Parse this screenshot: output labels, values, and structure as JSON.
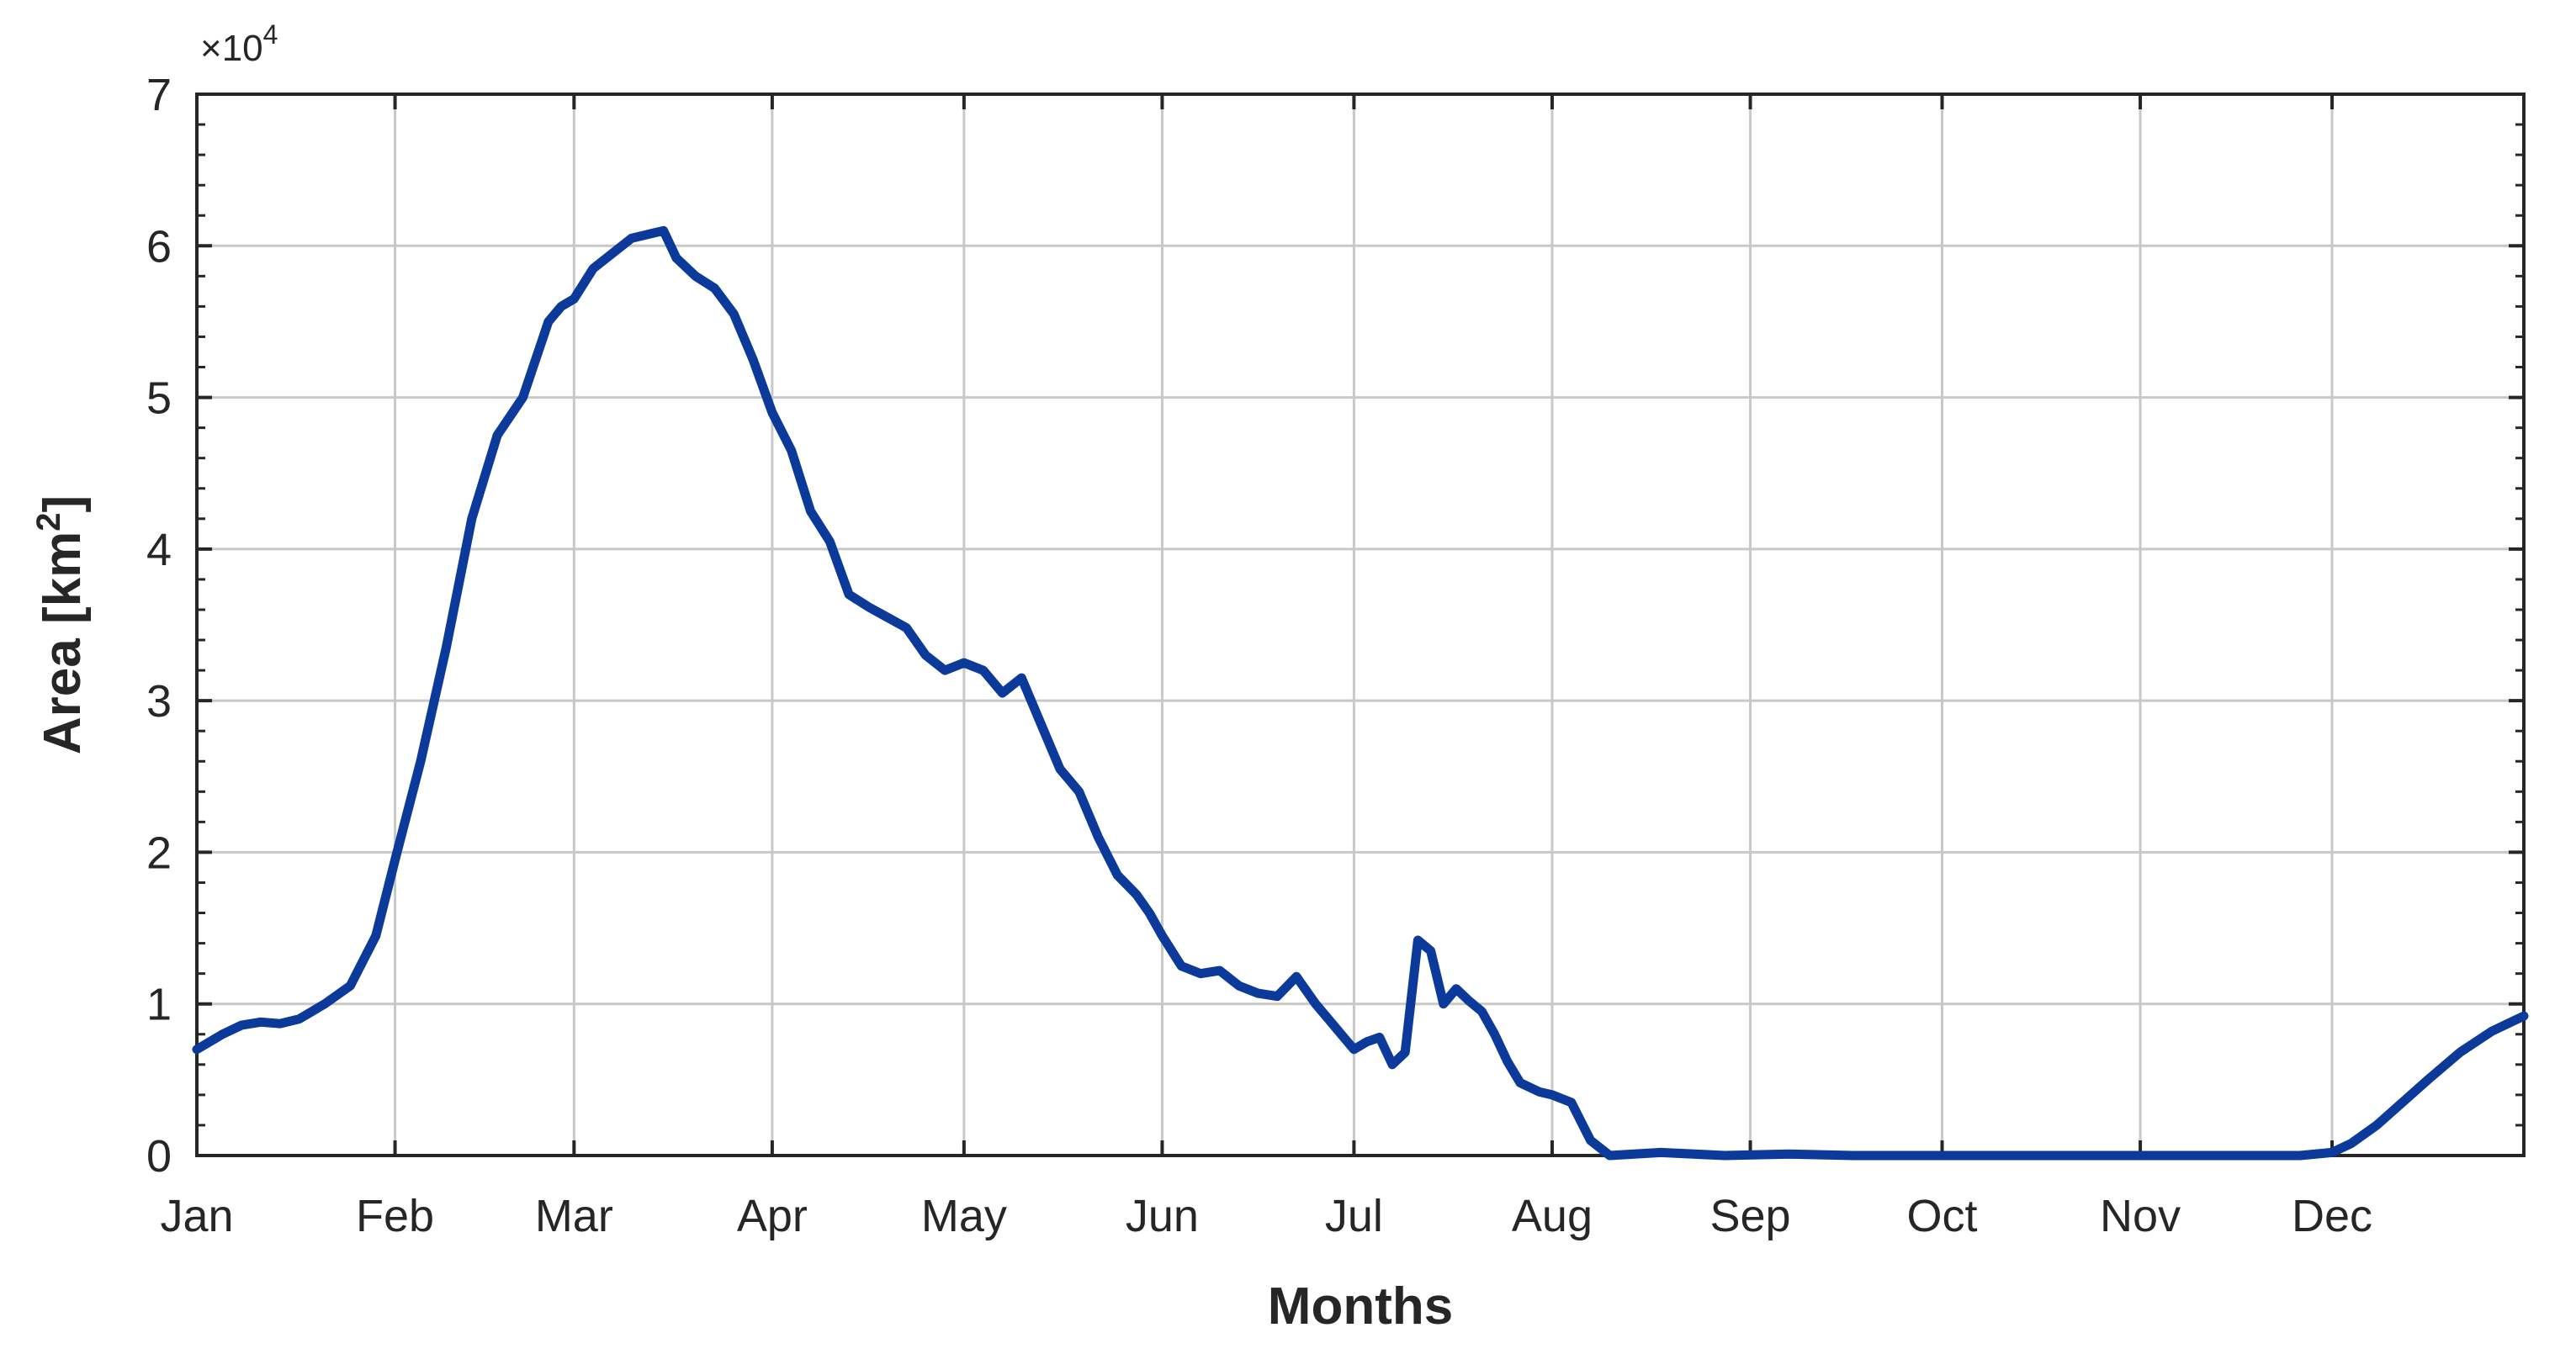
{
  "chart_data": {
    "type": "line",
    "title": "",
    "xlabel": "Months",
    "ylabel_text": "Area  [km",
    "ylabel_sup": "2",
    "ylabel_close": "]",
    "y_exponent_label": "×10",
    "y_exponent_power": "4",
    "x_tick_labels": [
      "Jan",
      "Feb",
      "Mar",
      "Apr",
      "May",
      "Jun",
      "Jul",
      "Aug",
      "Sep",
      "Oct",
      "Nov",
      "Dec"
    ],
    "x_tick_days": [
      1,
      32,
      60,
      91,
      121,
      152,
      182,
      213,
      244,
      274,
      305,
      335
    ],
    "xlim": [
      1,
      365
    ],
    "y_ticks": [
      0,
      1,
      2,
      3,
      4,
      5,
      6,
      7
    ],
    "ylim": [
      0,
      7
    ],
    "y_scale": 10000,
    "grid": true,
    "series_color": "#0b3a9a",
    "series": [
      {
        "x": [
          1,
          5,
          8,
          11,
          14,
          17,
          21,
          25,
          29,
          32,
          36,
          40,
          44,
          48,
          52,
          56,
          58,
          60,
          63,
          66,
          69,
          72,
          74,
          76,
          79,
          82,
          85,
          88,
          91,
          94,
          97,
          100,
          103,
          106,
          109,
          112,
          115,
          118,
          121,
          124,
          127,
          130,
          133,
          136,
          139,
          142,
          145,
          148,
          150,
          152,
          155,
          158,
          161,
          164,
          167,
          170,
          173,
          176,
          178,
          180,
          182,
          184,
          186,
          188,
          190,
          192,
          194,
          196,
          198,
          200,
          202,
          204,
          206,
          208,
          211,
          213,
          216,
          219,
          222,
          230,
          240,
          250,
          260,
          270,
          290,
          310,
          330,
          335,
          338,
          342,
          346,
          350,
          355,
          360,
          363,
          365
        ],
        "y": [
          0.7,
          0.8,
          0.86,
          0.88,
          0.87,
          0.9,
          1.0,
          1.12,
          1.45,
          1.95,
          2.6,
          3.35,
          4.2,
          4.75,
          5.0,
          5.5,
          5.6,
          5.65,
          5.85,
          5.95,
          6.05,
          6.08,
          6.1,
          5.92,
          5.8,
          5.72,
          5.55,
          5.25,
          4.9,
          4.65,
          4.25,
          4.05,
          3.7,
          3.62,
          3.55,
          3.48,
          3.3,
          3.2,
          3.25,
          3.2,
          3.05,
          3.15,
          2.85,
          2.55,
          2.4,
          2.1,
          1.85,
          1.72,
          1.6,
          1.45,
          1.25,
          1.2,
          1.22,
          1.12,
          1.07,
          1.05,
          1.18,
          1.0,
          0.9,
          0.8,
          0.7,
          0.75,
          0.78,
          0.6,
          0.68,
          1.42,
          1.35,
          1.0,
          1.1,
          1.02,
          0.95,
          0.8,
          0.62,
          0.48,
          0.42,
          0.4,
          0.35,
          0.1,
          0.0,
          0.02,
          0.0,
          0.01,
          0.0,
          0.0,
          0.0,
          0.0,
          0.0,
          0.02,
          0.08,
          0.2,
          0.35,
          0.5,
          0.68,
          0.82,
          0.88,
          0.92
        ]
      }
    ]
  }
}
